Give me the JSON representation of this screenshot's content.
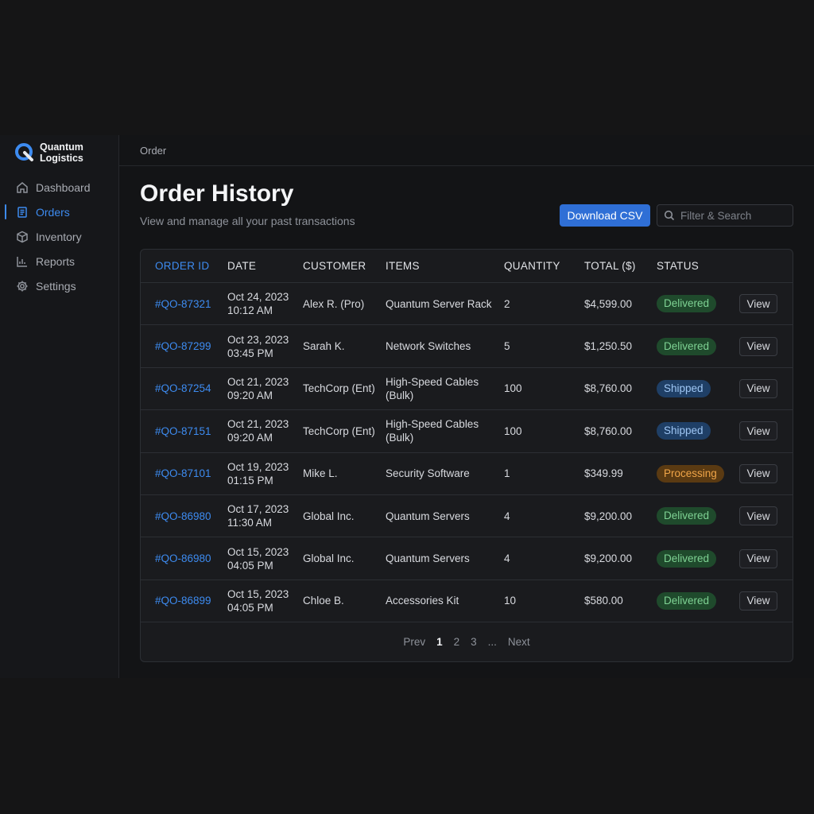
{
  "brand": {
    "name_line1": "Quantum",
    "name_line2": "Logistics"
  },
  "sidebar": {
    "items": [
      {
        "label": "Dashboard",
        "icon": "home-icon",
        "active": false
      },
      {
        "label": "Orders",
        "icon": "document-icon",
        "active": true
      },
      {
        "label": "Inventory",
        "icon": "box-icon",
        "active": false
      },
      {
        "label": "Reports",
        "icon": "bar-chart-icon",
        "active": false
      },
      {
        "label": "Settings",
        "icon": "gear-icon",
        "active": false
      }
    ]
  },
  "breadcrumb": "Order",
  "header": {
    "title": "Order History",
    "subtitle": "View and manage all your past transactions",
    "download_label": "Download CSV",
    "search_placeholder": "Filter & Search"
  },
  "table": {
    "columns": {
      "order_id": "ORDER ID",
      "date": "DATE",
      "customer": "CUSTOMER",
      "items": "ITEMS",
      "quantity": "QUANTITY",
      "total": "TOTAL ($)",
      "status": "STATUS"
    },
    "view_label": "View",
    "rows": [
      {
        "id": "#QO-87321",
        "date": "Oct 24, 2023",
        "time": "10:12 AM",
        "customer": "Alex R. (Pro)",
        "items": "Quantum Server Rack",
        "quantity": "2",
        "total": "$4,599.00",
        "status": "Delivered"
      },
      {
        "id": "#QO-87299",
        "date": "Oct 23, 2023",
        "time": "03:45 PM",
        "customer": "Sarah K.",
        "items": "Network Switches",
        "quantity": "5",
        "total": "$1,250.50",
        "status": "Delivered"
      },
      {
        "id": "#QO-87254",
        "date": "Oct 21, 2023",
        "time": "09:20 AM",
        "customer": "TechCorp (Ent)",
        "items": "High-Speed Cables (Bulk)",
        "quantity": "100",
        "total": "$8,760.00",
        "status": "Shipped"
      },
      {
        "id": "#QO-87151",
        "date": "Oct 21, 2023",
        "time": "09:20 AM",
        "customer": "TechCorp (Ent)",
        "items": "High-Speed Cables (Bulk)",
        "quantity": "100",
        "total": "$8,760.00",
        "status": "Shipped"
      },
      {
        "id": "#QO-87101",
        "date": "Oct 19, 2023",
        "time": "01:15 PM",
        "customer": "Mike L.",
        "items": "Security Software",
        "quantity": "1",
        "total": "$349.99",
        "status": "Processing"
      },
      {
        "id": "#QO-86980",
        "date": "Oct 17, 2023",
        "time": "11:30 AM",
        "customer": "Global Inc.",
        "items": "Quantum Servers",
        "quantity": "4",
        "total": "$9,200.00",
        "status": "Delivered"
      },
      {
        "id": "#QO-86980",
        "date": "Oct 15, 2023",
        "time": "04:05 PM",
        "customer": "Global Inc.",
        "items": "Quantum Servers",
        "quantity": "4",
        "total": "$9,200.00",
        "status": "Delivered"
      },
      {
        "id": "#QO-86899",
        "date": "Oct 15, 2023",
        "time": "04:05 PM",
        "customer": "Chloe B.",
        "items": "Accessories Kit",
        "quantity": "10",
        "total": "$580.00",
        "status": "Delivered"
      }
    ]
  },
  "pagination": {
    "prev": "Prev",
    "pages": [
      "1",
      "2",
      "3"
    ],
    "ellipsis": "...",
    "next": "Next",
    "current": "1"
  },
  "colors": {
    "accent": "#3d8bf0",
    "delivered": "#7fd394",
    "shipped": "#9fc7f5",
    "processing": "#f0a548"
  }
}
